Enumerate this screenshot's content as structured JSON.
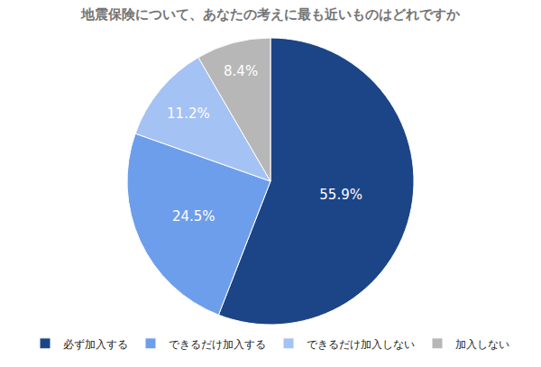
{
  "chart_data": {
    "type": "pie",
    "title": "地震保険について、あなたの考えに最も近いものはどれですか",
    "categories": [
      "必ず加入する",
      "できるだけ加入する",
      "できるだけ加入しない",
      "加入しない"
    ],
    "values": [
      55.9,
      24.5,
      11.2,
      8.4
    ],
    "value_labels": [
      "55.9%",
      "24.5%",
      "11.2%",
      "8.4%"
    ],
    "colors": [
      "#1c4587",
      "#6d9eeb",
      "#a4c2f4",
      "#b7b7b7"
    ],
    "data_labels": true,
    "legend": "bottom"
  }
}
